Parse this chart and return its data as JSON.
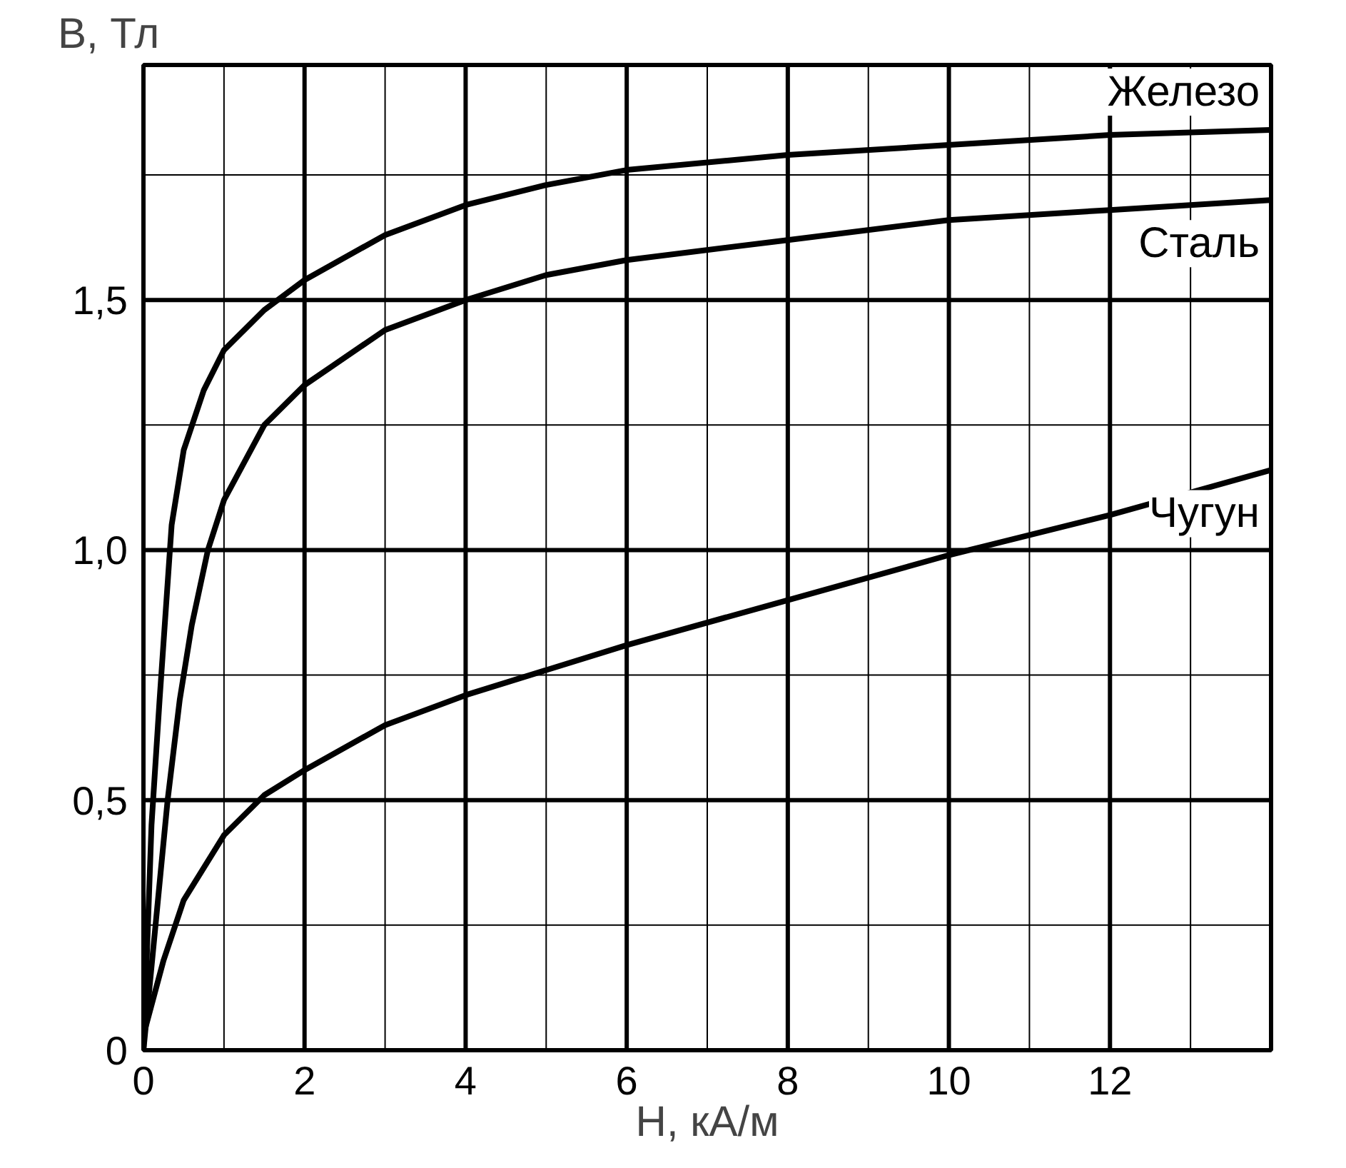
{
  "chart_data": {
    "type": "line",
    "xlabel": "H, кА/м",
    "ylabel": "B, Тл",
    "xlim": [
      0,
      14
    ],
    "ylim": [
      0,
      1.97
    ],
    "xticks": [
      0,
      {
        "value": 1,
        "label": null
      },
      2,
      {
        "value": 3,
        "label": null
      },
      4,
      {
        "value": 5,
        "label": null
      },
      6,
      {
        "value": 7,
        "label": null
      },
      8,
      {
        "value": 9,
        "label": null
      },
      10,
      {
        "value": 11,
        "label": null
      },
      12,
      {
        "value": 13,
        "label": null
      }
    ],
    "yticks": [
      0,
      {
        "value": 0.25,
        "label": null
      },
      {
        "value": 0.5,
        "label": "0,5"
      },
      {
        "value": 0.75,
        "label": null
      },
      {
        "value": 1.0,
        "label": "1,0"
      },
      {
        "value": 1.25,
        "label": null
      },
      {
        "value": 1.5,
        "label": "1,5"
      },
      {
        "value": 1.75,
        "label": null
      }
    ],
    "grid": true,
    "marker": "none",
    "line_style": "solid",
    "series": [
      {
        "name": "Железо",
        "color": "#000000",
        "x": [
          0,
          0.1,
          0.2,
          0.35,
          0.5,
          0.75,
          1,
          1.5,
          2,
          3,
          4,
          5,
          6,
          8,
          10,
          12,
          14
        ],
        "values": [
          0,
          0.45,
          0.7,
          1.05,
          1.2,
          1.32,
          1.4,
          1.48,
          1.54,
          1.63,
          1.69,
          1.73,
          1.76,
          1.79,
          1.81,
          1.83,
          1.84
        ]
      },
      {
        "name": "Сталь",
        "color": "#000000",
        "x": [
          0,
          0.15,
          0.3,
          0.45,
          0.6,
          0.8,
          1,
          1.5,
          2,
          3,
          4,
          5,
          6,
          8,
          10,
          12,
          14
        ],
        "values": [
          0,
          0.25,
          0.5,
          0.7,
          0.85,
          1.0,
          1.1,
          1.25,
          1.33,
          1.44,
          1.5,
          1.55,
          1.58,
          1.62,
          1.66,
          1.68,
          1.7
        ]
      },
      {
        "name": "Чугун",
        "color": "#000000",
        "x": [
          0,
          0.25,
          0.5,
          1,
          1.5,
          2,
          3,
          4,
          6,
          8,
          10,
          12,
          14
        ],
        "values": [
          0.03,
          0.18,
          0.3,
          0.43,
          0.51,
          0.56,
          0.65,
          0.71,
          0.81,
          0.9,
          0.99,
          1.07,
          1.16
        ]
      }
    ]
  }
}
